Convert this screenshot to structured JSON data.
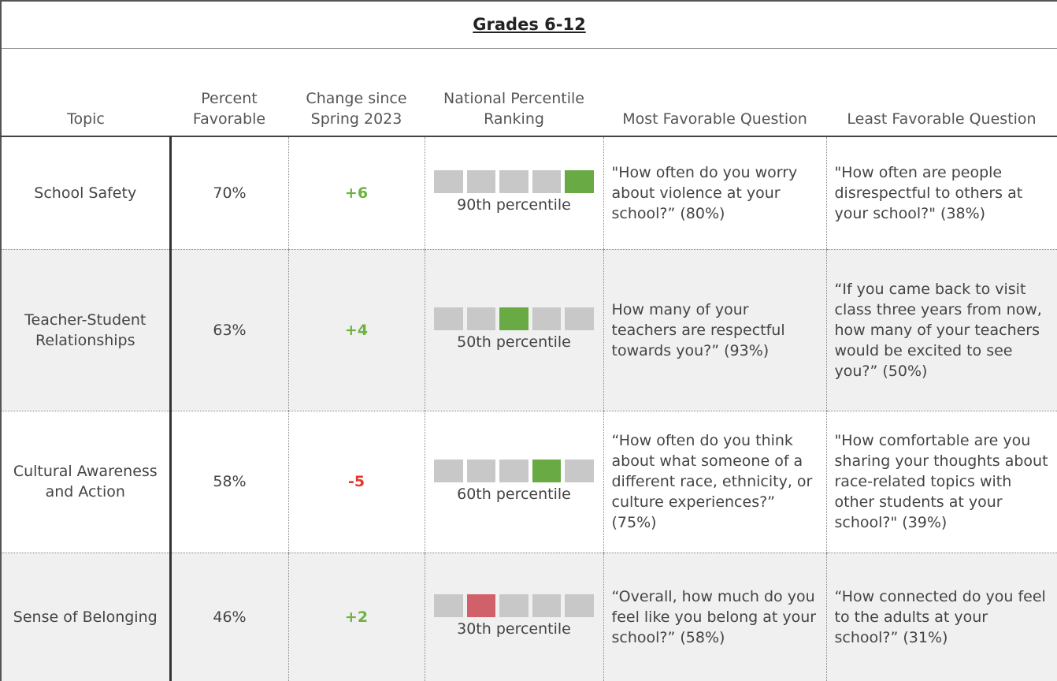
{
  "header": {
    "title": "Grades 6-12",
    "columns": [
      "Topic",
      "Percent Favorable",
      "Change since Spring 2023",
      "National Percentile Ranking",
      "Most Favorable Question",
      "Least Favorable Question"
    ]
  },
  "table": {
    "rows": [
      {
        "topic": "School Safety",
        "percent": "70%",
        "change": "+6",
        "change_color": "#6cb33f",
        "ranking": "90th percentile",
        "ranking_block": 5,
        "ranking_color": "#6aaa45",
        "most": "\"How often do you worry about violence at your school?” (80%)",
        "least": "\"How often are people disrespectful to others at your school?\" (38%)"
      },
      {
        "topic": "Teacher-Student Relationships",
        "percent": "63%",
        "change": "+4",
        "change_color": "#6cb33f",
        "ranking": "50th percentile",
        "ranking_block": 3,
        "ranking_color": "#6aaa45",
        "most": "How many of your teachers are respectful towards you?” (93%)",
        "least": "“If you came back to visit class three years from now, how many of your teachers would be excited to see you?” (50%)"
      },
      {
        "topic": "Cultural Awareness and Action",
        "percent": "58%",
        "change": "-5",
        "change_color": "#e8362d",
        "ranking": "60th percentile",
        "ranking_block": 4,
        "ranking_color": "#6aaa45",
        "most": "“How often do you think about what someone of a different race, ethnicity, or culture experiences?” (75%)",
        "least": "\"How comfortable are you sharing your thoughts about race-related topics with other students at your school?\" (39%)"
      },
      {
        "topic": "Sense of Belonging",
        "percent": "46%",
        "change": "+2",
        "change_color": "#6cb33f",
        "ranking": "30th percentile",
        "ranking_block": 2,
        "ranking_color": "#d0606a",
        "most": "“Overall, how much do you feel like you belong at your school?” (58%)",
        "least": "“How connected do you feel to the adults at your school?” (31%)"
      }
    ]
  }
}
